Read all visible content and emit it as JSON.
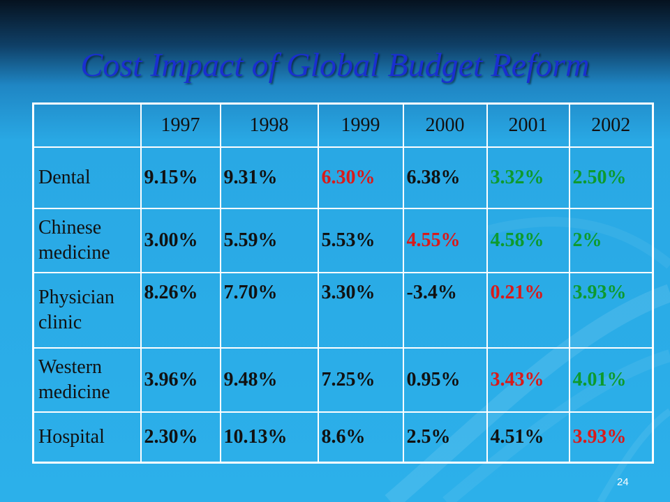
{
  "slide": {
    "title": "Cost Impact of Global Budget Reform",
    "page_number": "24"
  },
  "table": {
    "corner": "",
    "years": [
      "1997",
      "1998",
      "1999",
      "2000",
      "2001",
      "2002"
    ],
    "rows": [
      {
        "label": "Dental",
        "cells": [
          {
            "text": "9.15%",
            "color": "#111111"
          },
          {
            "text": "9.31%",
            "color": "#111111"
          },
          {
            "text": "6.30%",
            "color": "#d91a1a"
          },
          {
            "text": "6.38%",
            "color": "#111111"
          },
          {
            "text": "3.32%",
            "color": "#0d9a2e"
          },
          {
            "text": "2.50%",
            "color": "#0d9a2e"
          }
        ]
      },
      {
        "label": "Chinese medicine",
        "cells": [
          {
            "text": "3.00%",
            "color": "#111111"
          },
          {
            "text": "5.59%",
            "color": "#111111"
          },
          {
            "text": "5.53%",
            "color": "#111111"
          },
          {
            "text": "4.55%",
            "color": "#d91a1a"
          },
          {
            "text": "4.58%",
            "color": "#0d9a2e"
          },
          {
            "text": "2%",
            "color": "#0d9a2e"
          }
        ]
      },
      {
        "label": "Physician clinic",
        "cells": [
          {
            "text": "8.26%",
            "color": "#111111"
          },
          {
            "text": "7.70%",
            "color": "#111111"
          },
          {
            "text": "3.30%",
            "color": "#111111"
          },
          {
            "text": "-3.4%",
            "color": "#111111"
          },
          {
            "text": "0.21%",
            "color": "#d91a1a"
          },
          {
            "text": "3.93%",
            "color": "#0d9a2e"
          }
        ]
      },
      {
        "label": "Western medicine",
        "cells": [
          {
            "text": "3.96%",
            "color": "#111111"
          },
          {
            "text": "9.48%",
            "color": "#111111"
          },
          {
            "text": "7.25%",
            "color": "#111111"
          },
          {
            "text": "0.95%",
            "color": "#111111"
          },
          {
            "text": "3.43%",
            "color": "#d91a1a"
          },
          {
            "text": "4.01%",
            "color": "#0d9a2e"
          }
        ]
      },
      {
        "label": "Hospital",
        "cells": [
          {
            "text": "2.30%",
            "color": "#111111"
          },
          {
            "text": "10.13%",
            "color": "#111111"
          },
          {
            "text": "8.6%",
            "color": "#111111"
          },
          {
            "text": "2.5%",
            "color": "#111111"
          },
          {
            "text": "4.51%",
            "color": "#111111"
          },
          {
            "text": "3.93%",
            "color": "#d91a1a"
          }
        ]
      }
    ]
  },
  "colors": {
    "title": "#1a2fd0",
    "default_text": "#111111",
    "highlight_red": "#d91a1a",
    "highlight_green": "#0d9a2e",
    "grid_lines": "#ffffff"
  }
}
